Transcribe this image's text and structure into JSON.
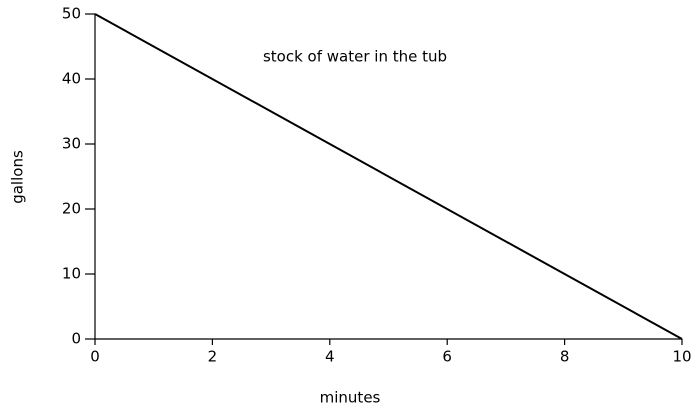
{
  "chart_data": {
    "type": "line",
    "annotation": "stock of water in the tub",
    "x_label": "minutes",
    "y_label": "gallons",
    "x": [
      0,
      10
    ],
    "series": [
      {
        "name": "stock of water in the tub",
        "color": "#000000",
        "values": [
          50,
          0
        ]
      }
    ],
    "xlim": [
      0,
      10
    ],
    "xticks": [
      0,
      2,
      4,
      6,
      8,
      10
    ],
    "ylim": [
      0,
      50
    ],
    "yticks": [
      0,
      10,
      20,
      30,
      40,
      50
    ],
    "grid": false
  }
}
